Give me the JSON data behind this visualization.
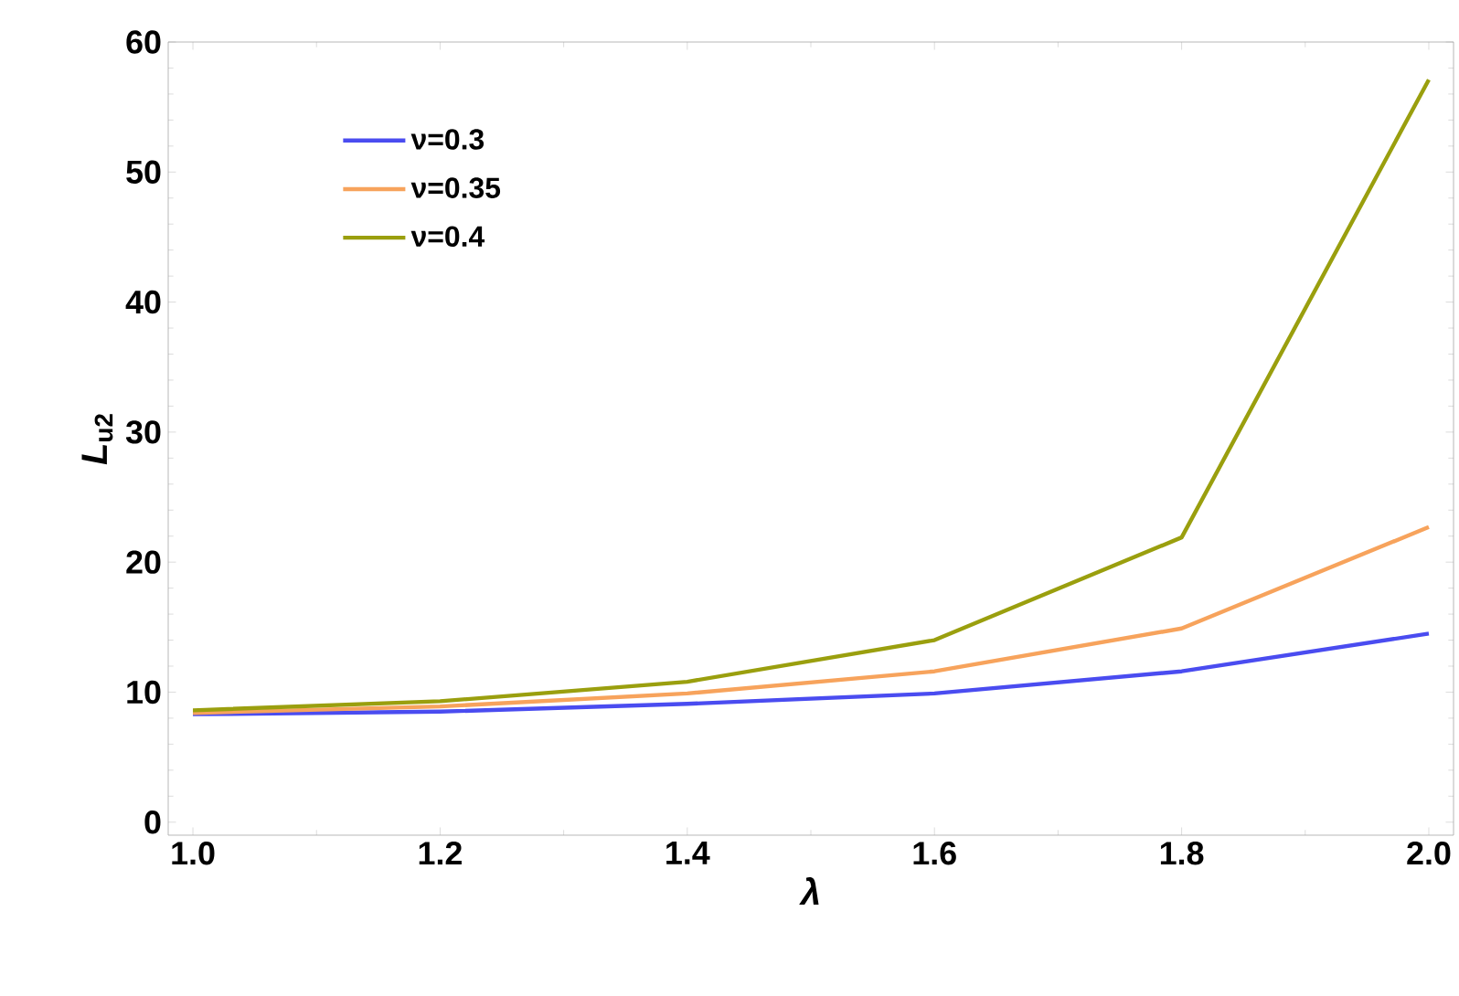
{
  "chart_data": {
    "type": "line",
    "xlabel": "*λ*",
    "ylabel": "*L*$_{u2}$",
    "x": [
      1.0,
      1.2,
      1.4,
      1.6,
      1.8,
      2.0
    ],
    "series": [
      {
        "name": "ν=0.3",
        "color": "#4a4cf0",
        "values": [
          8.3,
          8.5,
          9.1,
          9.9,
          11.6,
          14.5
        ]
      },
      {
        "name": "ν=0.35",
        "color": "#f7a35c",
        "values": [
          8.4,
          8.9,
          9.9,
          11.6,
          14.9,
          22.7
        ]
      },
      {
        "name": "ν=0.4",
        "color": "#9a9f0e",
        "values": [
          8.6,
          9.3,
          10.8,
          14.0,
          21.9,
          57.1
        ]
      }
    ],
    "xlim": [
      0.98,
      2.02
    ],
    "ylim": [
      -1,
      60
    ],
    "xticks": [
      {
        "value": 1.0,
        "label": "1.0"
      },
      1.2,
      1.4,
      1.6,
      1.8,
      {
        "value": 2.0,
        "label": "2.0"
      }
    ],
    "yticks": [
      0,
      10,
      20,
      30,
      40,
      50,
      60
    ],
    "legend": "top left",
    "grid": false,
    "marker": "none",
    "line_style": "solid"
  }
}
